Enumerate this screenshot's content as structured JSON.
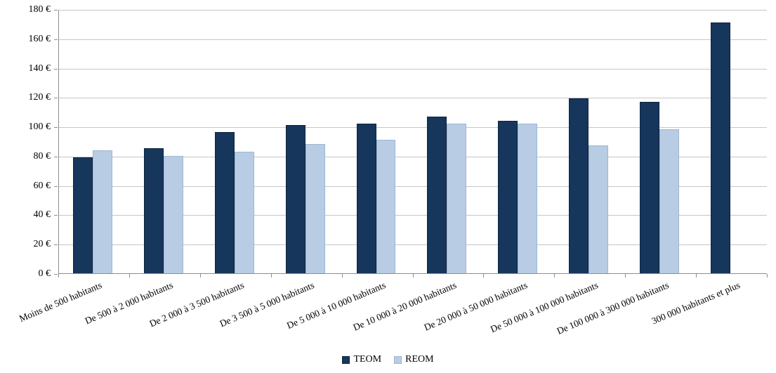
{
  "chart_data": {
    "type": "bar",
    "currency": "EUR",
    "categories": [
      "Moins de 500 habitants",
      "De 500 à 2 000 habitants",
      "De 2 000 à 3 500 habitants",
      "De 3 500 à 5 000 habitants",
      "De 5 000 à 10 000 habitants",
      "De 10 000 à 20 000 habitants",
      "De 20 000 à 50 000 habitants",
      "De 50 000 à 100 000 habitants",
      "De 100 000 à 300 000 habitants",
      "300 000 habitants et plus"
    ],
    "series": [
      {
        "name": "TEOM",
        "color": "#16365c",
        "values": [
          79,
          85,
          96,
          101,
          102,
          107,
          104,
          119,
          117,
          171
        ]
      },
      {
        "name": "REOM",
        "color": "#b8cce4",
        "values": [
          84,
          80,
          83,
          88,
          91,
          102,
          102,
          87,
          98,
          null
        ]
      }
    ],
    "title": "",
    "xlabel": "",
    "ylabel": "",
    "ylim": [
      0,
      180
    ],
    "y_tick_step": 20,
    "y_tick_values": [
      0,
      20,
      40,
      60,
      80,
      100,
      120,
      140,
      160,
      180
    ],
    "y_tick_labels": [
      "0 €",
      "20 €",
      "40 €",
      "60 €",
      "80 €",
      "100 €",
      "120 €",
      "140 €",
      "160 €",
      "180 €"
    ],
    "grid": "horizontal",
    "legend_position": "bottom-center",
    "colors": {
      "gridline": "#c6c6c6",
      "axis": "#8e8e8e",
      "text": "#000000"
    }
  }
}
